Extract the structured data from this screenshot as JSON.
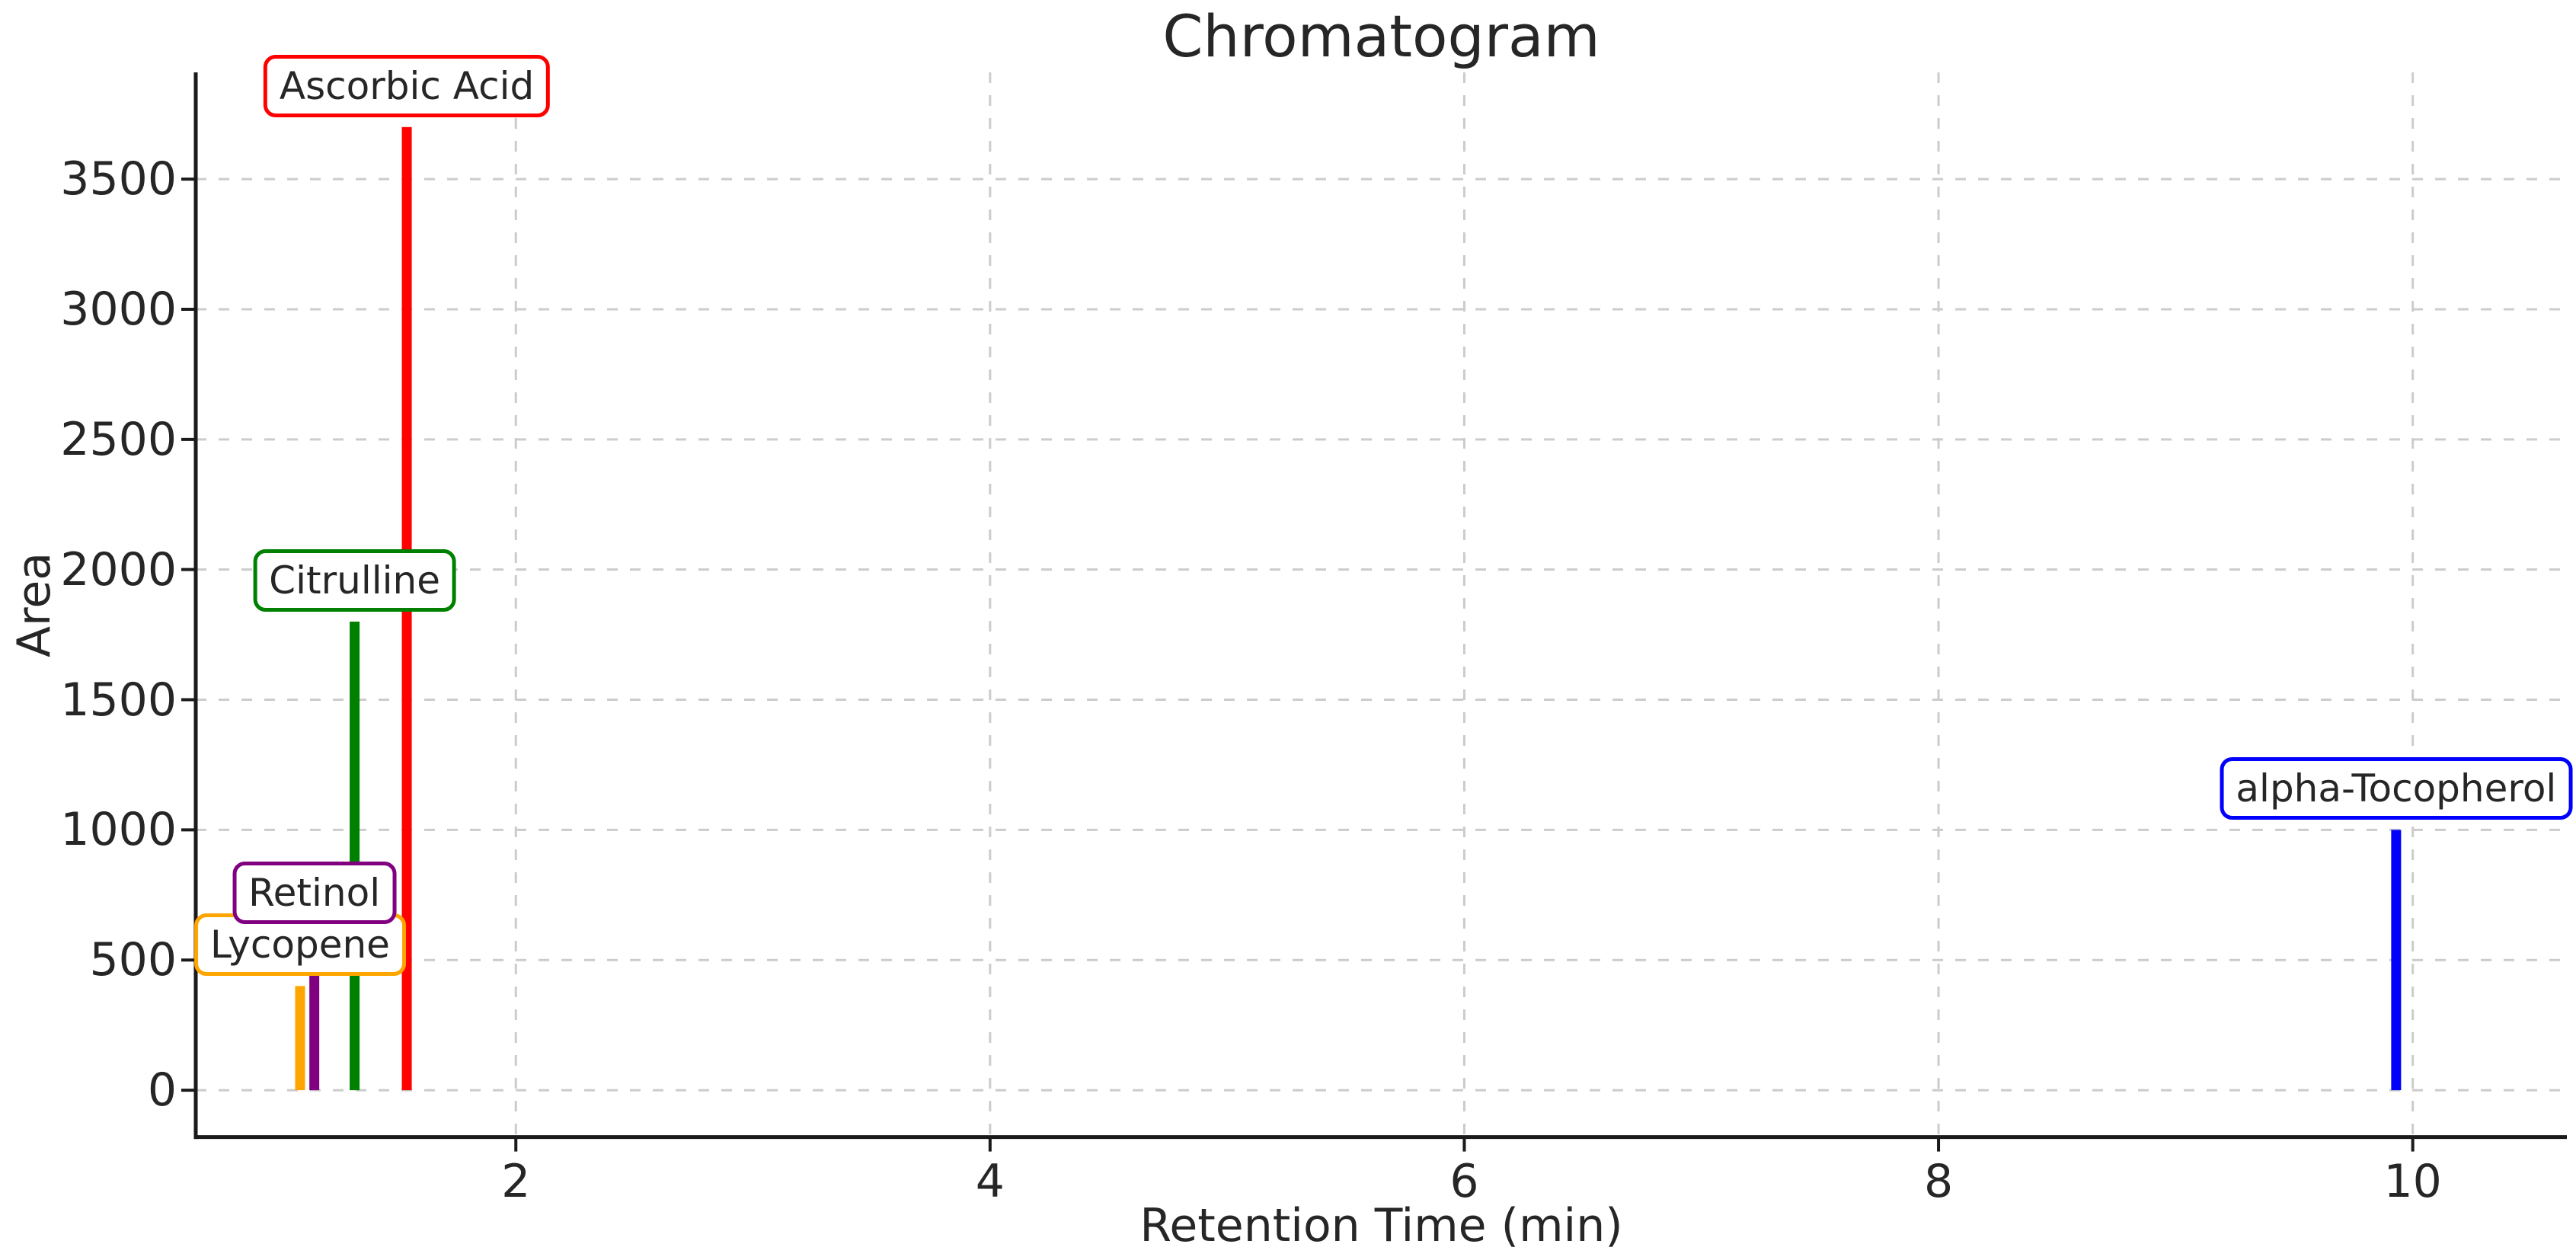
{
  "page": {
    "background_color": "#ffffff"
  },
  "chart_data": {
    "type": "line",
    "subtype": "chromatogram-stem-peaks",
    "title": "Chromatogram",
    "xlabel": "Retention Time (min)",
    "ylabel": "Area",
    "xlim": [
      0.65,
      10.65
    ],
    "ylim": [
      -180,
      3910
    ],
    "x_ticks": [
      2,
      4,
      6,
      8,
      10
    ],
    "y_ticks": [
      0,
      500,
      1000,
      1500,
      2000,
      2500,
      3000,
      3500
    ],
    "grid": "both axes, dashed, light gray",
    "legend": false,
    "annotation_style": "rounded white box with colored border centered above each peak",
    "peaks": [
      {
        "name": "Lycopene",
        "retention_time": 1.09,
        "area": 400,
        "color": "#FFA500"
      },
      {
        "name": "Retinol",
        "retention_time": 1.15,
        "area": 600,
        "color": "#800080"
      },
      {
        "name": "Citrulline",
        "retention_time": 1.32,
        "area": 1800,
        "color": "#008000"
      },
      {
        "name": "Ascorbic Acid",
        "retention_time": 1.54,
        "area": 3700,
        "color": "#FF0000"
      },
      {
        "name": "alpha-Tocopherol",
        "retention_time": 9.93,
        "area": 1000,
        "color": "#0000FF"
      }
    ]
  },
  "colors": {
    "spine": "#1a1a1a",
    "tick": "#1a1a1a",
    "grid": "#cccccc",
    "text": "#262626",
    "plot_background": "#ffffff"
  }
}
